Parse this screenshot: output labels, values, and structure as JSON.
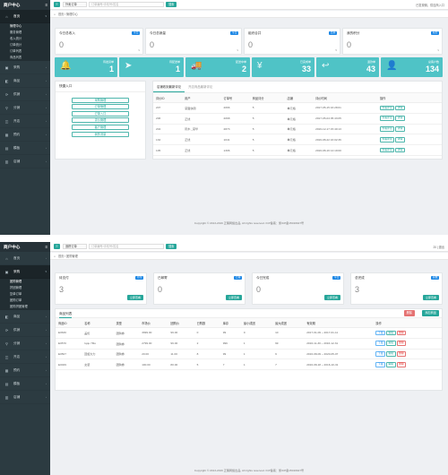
{
  "brand": "商户中心",
  "sidebar": [
    {
      "label": "首页",
      "icon": "home-icon",
      "glyph": "⌂"
    },
    {
      "label": "采购",
      "icon": "cart-icon",
      "glyph": "▣"
    },
    {
      "label": "商品",
      "icon": "box-icon",
      "glyph": "◧"
    },
    {
      "label": "供销",
      "icon": "share-icon",
      "glyph": "⟳"
    },
    {
      "label": "分销",
      "icon": "network-icon",
      "glyph": "⚲"
    },
    {
      "label": "开店",
      "icon": "store-icon",
      "glyph": "◫"
    },
    {
      "label": "预约",
      "icon": "calendar-icon",
      "glyph": "▦"
    },
    {
      "label": "模板",
      "icon": "template-icon",
      "glyph": "▤"
    },
    {
      "label": "店铺",
      "icon": "shop-icon",
      "glyph": "▥"
    }
  ],
  "screen1": {
    "home_sub": [
      "管理中心",
      "服务管理",
      "收入统计",
      "订单统计",
      "订单列表",
      "商品列表"
    ],
    "topbar": {
      "select": "外卖订单",
      "search_placeholder": "订单编号/手机号/姓名",
      "search_btn": "搜索",
      "right": "已发现佣，供应商入口"
    },
    "breadcrumb": {
      "home": "首页",
      "current": "管理中心"
    },
    "stat_cards": [
      {
        "title": "今日总收入",
        "badge": "今日",
        "value": "0",
        "sub": "¥"
      },
      {
        "title": "今日总销量",
        "badge": "今日",
        "value": "0",
        "sub": "¥"
      },
      {
        "title": "组织合并",
        "badge": "合并",
        "value": "0",
        "sub": "5"
      },
      {
        "title": "我的积分",
        "badge": "积分",
        "value": "0",
        "sub": "¥"
      }
    ],
    "tiles": [
      {
        "label": "待发货单",
        "value": "1",
        "icon": "bell-icon",
        "glyph": "🔔"
      },
      {
        "label": "待配送单",
        "value": "1",
        "icon": "send-icon",
        "glyph": "➤"
      },
      {
        "label": "配送中单",
        "value": "2",
        "icon": "truck-icon",
        "glyph": "🚚"
      },
      {
        "label": "已完成单",
        "value": "33",
        "icon": "yen-icon",
        "glyph": "¥"
      },
      {
        "label": "退款单",
        "value": "43",
        "icon": "return-icon",
        "glyph": "↩"
      },
      {
        "label": "总客户数",
        "value": "134",
        "icon": "user-icon",
        "glyph": "👤"
      }
    ],
    "quick": {
      "title": "快捷入口",
      "links": [
        "采购管理",
        "订单管理",
        "订单入口",
        "评价管理",
        "客户管理",
        "我的流量"
      ]
    },
    "reviews": {
      "tabs": [
        "店铺收到最新评论",
        "开店商品最新评论"
      ],
      "headers": [
        "评价ID",
        "用户",
        "订单号",
        "商品评分",
        "店铺",
        "评价时间",
        "操作"
      ],
      "rows": [
        [
          "207",
          "蒙面侠阁",
          "2066",
          "5",
          "单元格",
          "2017-05-15 16:28:01"
        ],
        [
          "206",
          "正线",
          "2068",
          "5",
          "单元格",
          "2017-05-04 05:43:05"
        ],
        [
          "204",
          "阮木._蒙华",
          "2873",
          "5",
          "单元格",
          "2016-12-17 15:40:13"
        ],
        [
          "132",
          "正线",
          "1041",
          "5",
          "单元格",
          "2016-08-22 16:02:36"
        ],
        [
          "105",
          "正线",
          "1306",
          "5",
          "单元格",
          "2016-08-16 14:19:00"
        ]
      ],
      "ops": [
        "查看评论",
        "详情"
      ]
    },
    "footer": "Copyright © 2013-2016 正策网络出品, All rights reserved. ICP备案：浙ICP备15016647号"
  },
  "screen2": {
    "topbar": {
      "select": "追踪订单",
      "search_placeholder": "订单编号/手机号/姓名",
      "search_btn": "搜索",
      "right": "20 | 退出"
    },
    "breadcrumb": {
      "home": "首页",
      "current": "团购管理"
    },
    "group_sub": [
      "团购管理",
      "拼团管理",
      "复单订单",
      "团购订单",
      "团购拼团管理"
    ],
    "stat_cards": [
      {
        "title": "待支付",
        "badge": "待付",
        "value": "3",
        "btn": "立即查看"
      },
      {
        "title": "已邮寄",
        "badge": "已寄",
        "value": "0",
        "btn": "立即查看"
      },
      {
        "title": "今日完成",
        "badge": "今日",
        "value": "0",
        "btn": "立即查看"
      },
      {
        "title": "总完成",
        "badge": "总数",
        "value": "3",
        "btn": "立即查看"
      }
    ],
    "list": {
      "title": "商品列表",
      "btn_delete": "删除",
      "btn_add": "添加商品",
      "headers": [
        "商品ID",
        "名称",
        "类型",
        "市场价",
        "团购价",
        "已购数",
        "库存",
        "最小成团",
        "最大成团",
        "有效期",
        "操作"
      ],
      "rows": [
        [
          "E0630",
          "盖伦",
          "团购券",
          "3999.00",
          "99.00",
          "0",
          "99",
          "0",
          "10",
          "2017-01-09 ~ 2017-01-11"
        ],
        [
          "E0570",
          "Iqqu 7Mo",
          "团购券",
          "2799.00",
          "99.00",
          "2",
          "999",
          "1",
          "99",
          "2016-11-30 ~ 2016-12-31"
        ],
        [
          "E0507",
          "回旋大力",
          "团购券",
          "20.00",
          "11.00",
          "8",
          "99",
          "1",
          "9",
          "2016-08-09 ~ 2020-05-07"
        ],
        [
          "E0029",
          "女装",
          "团购券",
          "100.00",
          "80.00",
          "5",
          "7",
          "1",
          "7",
          "2016-08-18 ~ 2016-10-31"
        ]
      ],
      "ops": [
        "下载",
        "编辑",
        "删除"
      ]
    },
    "footer": "Copyright © 2013-2016 正策网络出品, All rights reserved. ICP备案：浙ICP备15016647号"
  },
  "colors": {
    "sidebar": "#2c3b41",
    "accent": "#26a69a",
    "tile": "#4fc3c6",
    "danger": "#e57373"
  }
}
